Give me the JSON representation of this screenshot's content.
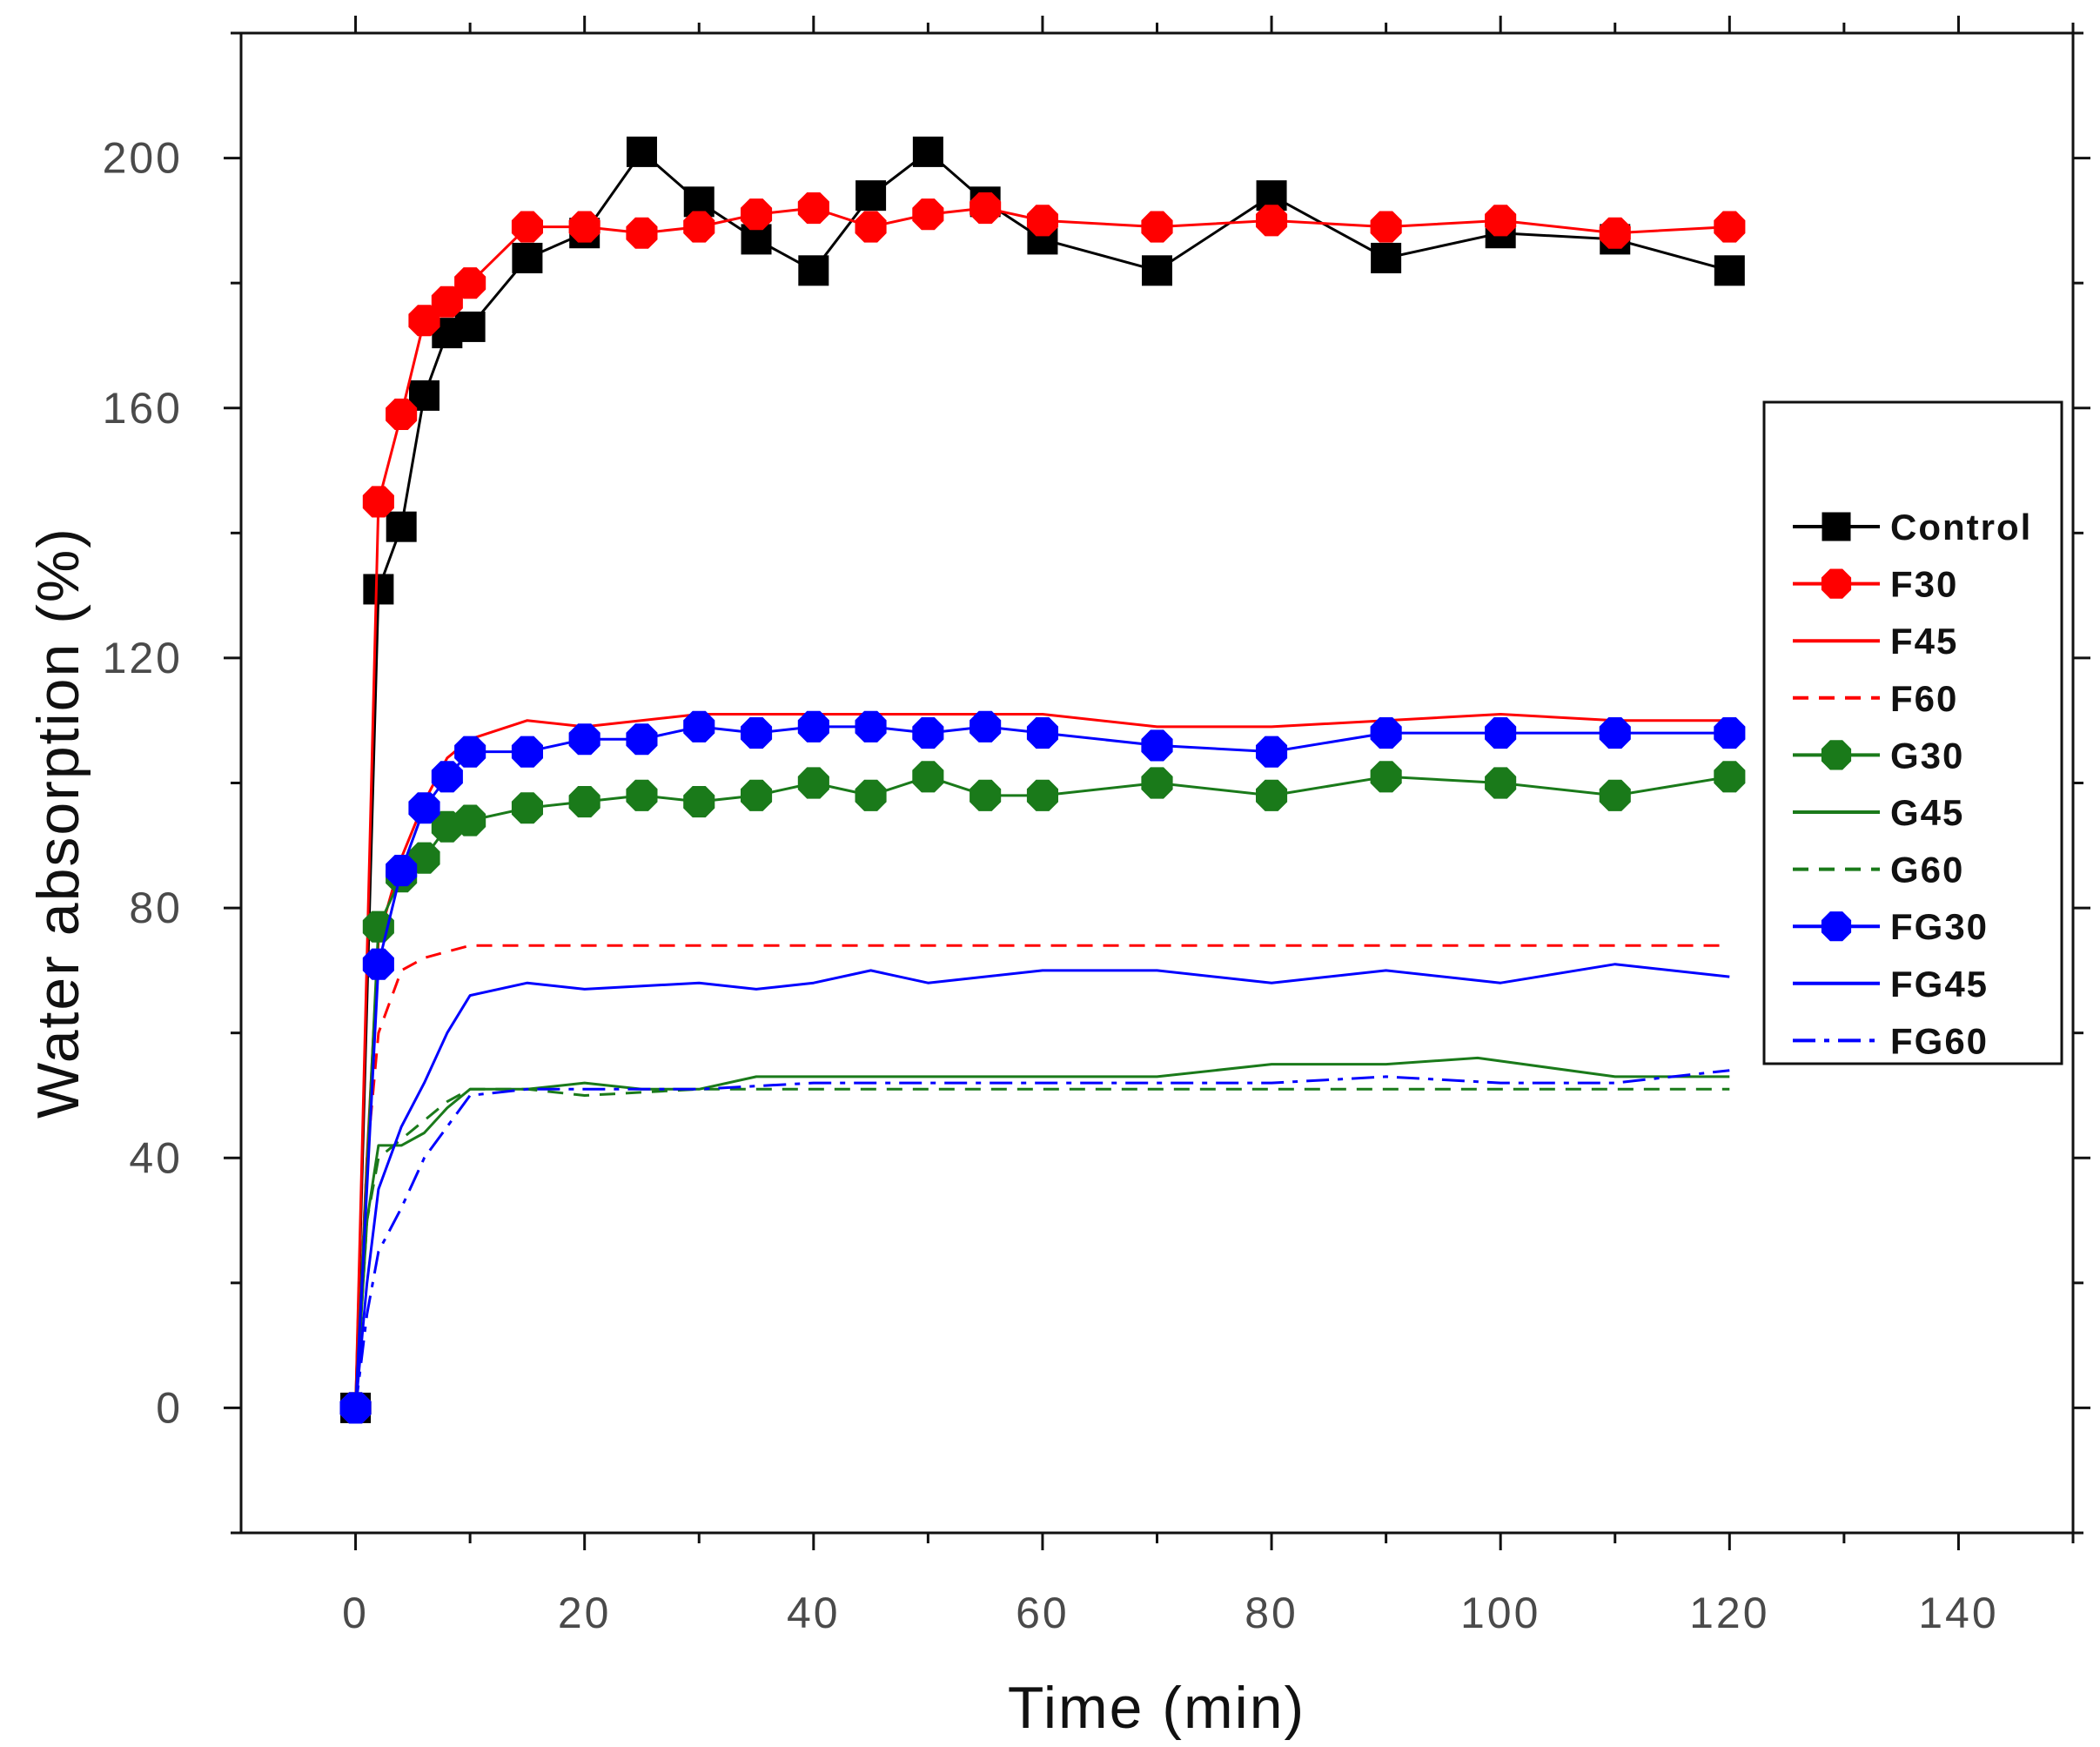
{
  "chart_data": {
    "type": "line",
    "title": "",
    "xlabel": "Time (min)",
    "ylabel": "Water absorption (%)",
    "xlim": [
      -10,
      150
    ],
    "ylim": [
      -20,
      220
    ],
    "xticks": [
      0,
      20,
      40,
      60,
      80,
      100,
      120,
      140
    ],
    "yticks": [
      0,
      40,
      80,
      120,
      160,
      200
    ],
    "x_tick_labels": [
      "0",
      "20",
      "40",
      "60",
      "80",
      "100",
      "120",
      "140"
    ],
    "y_tick_labels": [
      "0",
      "40",
      "80",
      "120",
      "160",
      "200"
    ],
    "legend_position": "right",
    "series": [
      {
        "name": "Control",
        "color": "#000000",
        "marker": "square",
        "line": "solid",
        "x": [
          0,
          2,
          4,
          6,
          8,
          10,
          15,
          20,
          25,
          30,
          35,
          40,
          45,
          50,
          55,
          60,
          70,
          80,
          90,
          100,
          110,
          120
        ],
        "y": [
          0,
          131,
          141,
          162,
          172,
          173,
          184,
          188,
          201,
          193,
          187,
          182,
          194,
          201,
          193,
          187,
          182,
          194,
          184,
          188,
          187,
          182
        ]
      },
      {
        "name": "F30",
        "color": "#ff0000",
        "marker": "circle",
        "line": "solid",
        "x": [
          0,
          2,
          4,
          6,
          8,
          10,
          15,
          20,
          25,
          30,
          35,
          40,
          45,
          50,
          55,
          60,
          70,
          80,
          90,
          100,
          110,
          120
        ],
        "y": [
          0,
          145,
          159,
          174,
          177,
          180,
          189,
          189,
          188,
          189,
          191,
          192,
          189,
          191,
          192,
          190,
          189,
          190,
          189,
          190,
          188,
          189
        ]
      },
      {
        "name": "F45",
        "color": "#ff0000",
        "marker": "none",
        "line": "solid",
        "x": [
          0,
          1,
          2,
          4,
          6,
          8,
          10,
          15,
          20,
          30,
          40,
          50,
          60,
          70,
          80,
          90,
          100,
          110,
          120
        ],
        "y": [
          0,
          40,
          75,
          88,
          97,
          104,
          107,
          110,
          109,
          111,
          111,
          111,
          111,
          109,
          109,
          110,
          111,
          110,
          110
        ]
      },
      {
        "name": "F60",
        "color": "#ff0000",
        "marker": "none",
        "line": "dash",
        "x": [
          0,
          1,
          2,
          4,
          6,
          8,
          10,
          15,
          20,
          30,
          40,
          50,
          60,
          70,
          80,
          90,
          100,
          110,
          120
        ],
        "y": [
          0,
          40,
          60,
          70,
          72,
          73,
          74,
          74,
          74,
          74,
          74,
          74,
          74,
          74,
          74,
          74,
          74,
          74,
          74
        ]
      },
      {
        "name": "G30",
        "color": "#1a7a1a",
        "marker": "circle",
        "line": "solid",
        "x": [
          0,
          2,
          4,
          6,
          8,
          10,
          15,
          20,
          25,
          30,
          35,
          40,
          45,
          50,
          55,
          60,
          70,
          80,
          90,
          100,
          110,
          120
        ],
        "y": [
          0,
          77,
          85,
          88,
          93,
          94,
          96,
          97,
          98,
          97,
          98,
          100,
          98,
          101,
          98,
          98,
          100,
          98,
          101,
          100,
          98,
          101
        ]
      },
      {
        "name": "G45",
        "color": "#1a7a1a",
        "marker": "none",
        "line": "solid",
        "x": [
          0,
          1,
          2,
          4,
          6,
          8,
          10,
          15,
          20,
          25,
          30,
          35,
          40,
          50,
          60,
          70,
          80,
          90,
          98,
          110,
          120
        ],
        "y": [
          0,
          30,
          42,
          42,
          44,
          48,
          51,
          51,
          52,
          51,
          51,
          53,
          53,
          53,
          53,
          53,
          55,
          55,
          56,
          53,
          53
        ]
      },
      {
        "name": "G60",
        "color": "#1a7a1a",
        "marker": "none",
        "line": "dash",
        "x": [
          0,
          1,
          2,
          4,
          6,
          8,
          10,
          15,
          20,
          30,
          40,
          50,
          60,
          70,
          80,
          90,
          100,
          110,
          120
        ],
        "y": [
          0,
          30,
          40,
          43,
          46,
          49,
          51,
          51,
          50,
          51,
          51,
          51,
          51,
          51,
          51,
          51,
          51,
          51,
          51
        ]
      },
      {
        "name": "FG30",
        "color": "#0000ff",
        "marker": "circle",
        "line": "solid",
        "x": [
          0,
          2,
          4,
          6,
          8,
          10,
          15,
          20,
          25,
          30,
          35,
          40,
          45,
          50,
          55,
          60,
          70,
          80,
          90,
          100,
          110,
          120
        ],
        "y": [
          0,
          71,
          86,
          96,
          101,
          105,
          105,
          107,
          107,
          109,
          108,
          109,
          109,
          108,
          109,
          108,
          106,
          105,
          108,
          108,
          108,
          108
        ]
      },
      {
        "name": "FG45",
        "color": "#0000ff",
        "marker": "none",
        "line": "solid",
        "x": [
          0,
          1,
          2,
          4,
          6,
          8,
          10,
          15,
          20,
          30,
          35,
          40,
          45,
          50,
          60,
          70,
          80,
          90,
          100,
          110,
          120
        ],
        "y": [
          0,
          20,
          35,
          45,
          52,
          60,
          66,
          68,
          67,
          68,
          67,
          68,
          70,
          68,
          70,
          70,
          68,
          70,
          68,
          71,
          69
        ]
      },
      {
        "name": "FG60",
        "color": "#0000ff",
        "marker": "none",
        "line": "dashdot",
        "x": [
          0,
          1,
          2,
          4,
          6,
          8,
          10,
          15,
          20,
          30,
          40,
          50,
          60,
          70,
          80,
          90,
          100,
          110,
          120
        ],
        "y": [
          0,
          15,
          25,
          32,
          40,
          45,
          50,
          51,
          51,
          51,
          52,
          52,
          52,
          52,
          52,
          53,
          52,
          52,
          54
        ]
      }
    ]
  }
}
